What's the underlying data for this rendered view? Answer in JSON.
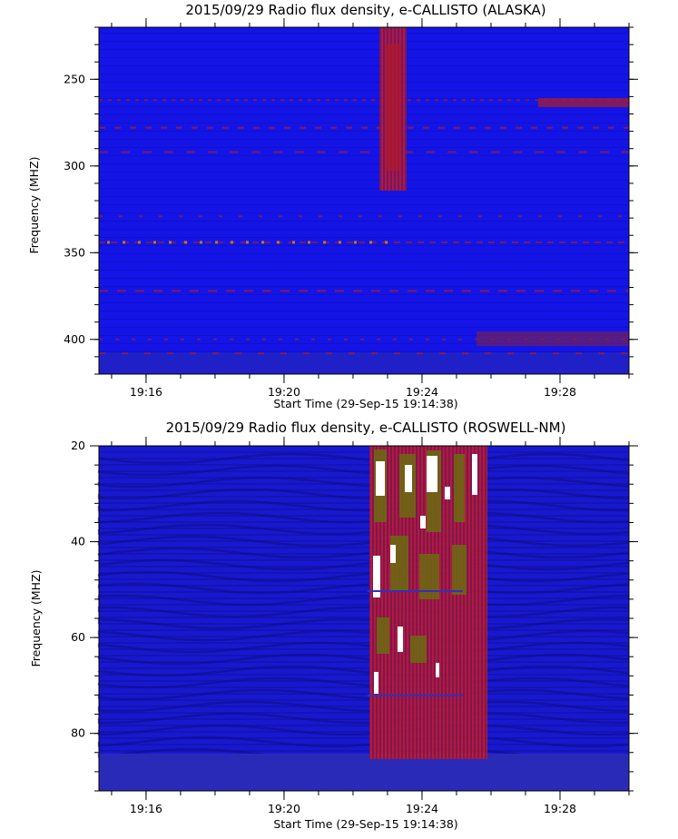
{
  "chart_data": [
    {
      "type": "heatmap",
      "title": "2015/09/29  Radio flux density, e-CALLISTO (ALASKA)",
      "xlabel": "Start Time (29-Sep-15 19:14:38)",
      "ylabel": "Frequency (MHZ)",
      "x_range": [
        "19:14:38",
        "19:30:00"
      ],
      "xtick_labels": [
        "19:16",
        "19:20",
        "19:24",
        "19:28"
      ],
      "xtick_minutes": [
        16,
        20,
        24,
        28
      ],
      "ylim": [
        220,
        420
      ],
      "y_inverted": true,
      "ytick_values": [
        250,
        300,
        350,
        400
      ],
      "burst": {
        "start": "19:23:00",
        "end": "19:23:45",
        "freq_range": [
          220,
          330
        ],
        "intensity": "high"
      },
      "interference_lines_mhz": [
        262,
        278,
        292,
        329,
        344,
        372,
        400,
        408
      ],
      "colors": {
        "background": "#1414e6",
        "medium": "#7a1f52",
        "high": "#b0182c"
      }
    },
    {
      "type": "heatmap",
      "title": "2015/09/29  Radio flux density, e-CALLISTO (ROSWELL-NM)",
      "xlabel": "Start Time (29-Sep-15 19:14:38)",
      "ylabel": "Frequency (MHZ)",
      "x_range": [
        "19:14:38",
        "19:30:00"
      ],
      "xtick_labels": [
        "19:16",
        "19:20",
        "19:24",
        "19:28"
      ],
      "xtick_minutes": [
        16,
        20,
        24,
        28
      ],
      "ylim": [
        20,
        92
      ],
      "y_inverted": true,
      "ytick_values": [
        20,
        40,
        60,
        80
      ],
      "burst": {
        "start": "19:22:40",
        "end": "19:25:50",
        "freq_range": [
          20,
          88
        ],
        "intensity": "very high"
      },
      "colors": {
        "background": "#1818d0",
        "medium": "#9a1d3c",
        "high": "#6b6b10",
        "peak": "#ffffff"
      }
    }
  ]
}
